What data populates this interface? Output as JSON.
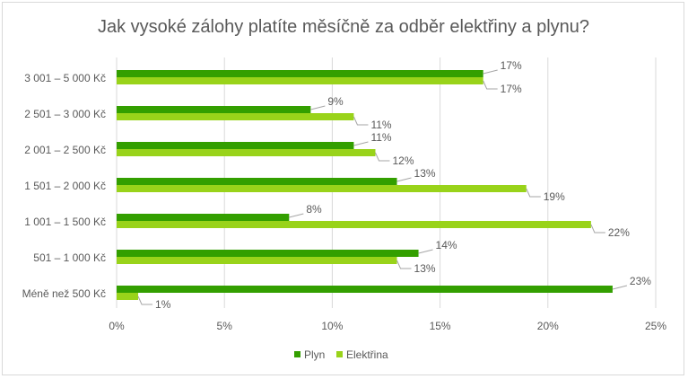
{
  "chart_data": {
    "type": "bar",
    "orientation": "horizontal",
    "title": "Jak vysoké zálohy platíte měsíčně za odběr elektřiny a plynu?",
    "categories": [
      "3 001 – 5 000 Kč",
      "2 501 – 3 000 Kč",
      "2 001 – 2 500 Kč",
      "1 501 – 2 000 Kč",
      "1 001 – 1 500 Kč",
      "501 – 1 000 Kč",
      "Méně než 500 Kč"
    ],
    "series": [
      {
        "name": "Plyn",
        "color": "#339f00",
        "values": [
          17,
          9,
          11,
          13,
          8,
          14,
          23
        ]
      },
      {
        "name": "Elektřina",
        "color": "#99d31a",
        "values": [
          17,
          11,
          12,
          19,
          22,
          13,
          1
        ]
      }
    ],
    "xlim": [
      0,
      25
    ],
    "xticks": [
      0,
      5,
      10,
      15,
      20,
      25
    ],
    "xtick_labels": [
      "0%",
      "5%",
      "10%",
      "15%",
      "20%",
      "25%"
    ],
    "value_suffix": "%",
    "grid": true,
    "legend": "bottom"
  }
}
